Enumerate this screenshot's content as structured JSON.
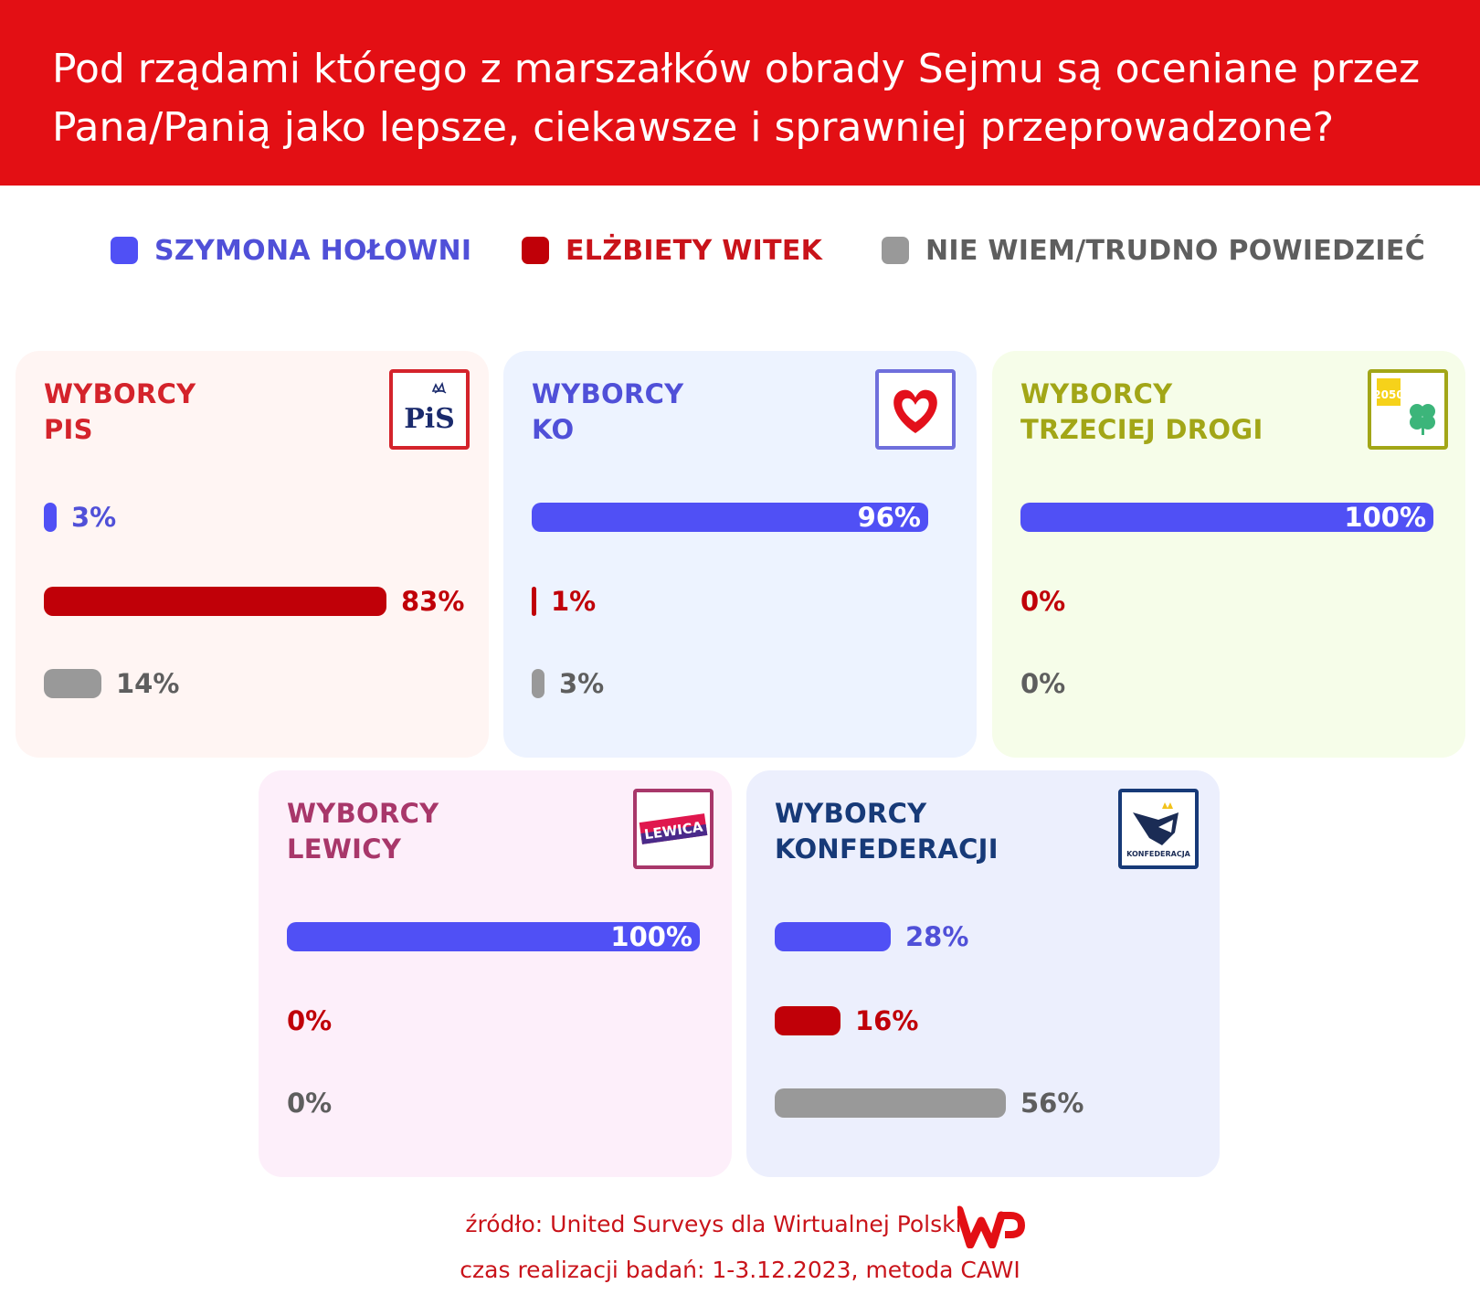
{
  "header": {
    "title": "Pod rządami którego z marszałków obrady Sejmu są oceniane przez Pana/Panią jako lepsze, ciekawsze i sprawniej przeprowadzone?"
  },
  "colors": {
    "holownia": "#5050f5",
    "witek": "#c00008",
    "dont_know": "#999999",
    "header": "#e30f14"
  },
  "legend": [
    {
      "label": "SZYMONA HOŁOWNI",
      "color": "#5050f5"
    },
    {
      "label": "ELŻBIETY WITEK",
      "color": "#c00008"
    },
    {
      "label": "NIE WIEM/TRUDNO POWIEDZIEĆ",
      "color": "#8a8a8a"
    }
  ],
  "chart_data": {
    "type": "bar",
    "series_names": [
      "SZYMONA HOŁOWNI",
      "ELŻBIETY WITEK",
      "NIE WIEM/TRUDNO POWIEDZIEĆ"
    ],
    "value_unit": "%",
    "xlim": [
      0,
      100
    ],
    "groups": [
      {
        "title_line1": "WYBORCY",
        "title_line2": "PIS",
        "title_color": "#d4232b",
        "bg": "#fff5f3",
        "logo": "pis-logo-icon",
        "logo_color": "#d4232b",
        "values": [
          3,
          83,
          14
        ],
        "labels": [
          "3%",
          "83%",
          "14%"
        ]
      },
      {
        "title_line1": "WYBORCY",
        "title_line2": "KO",
        "title_color": "#5050d8",
        "bg": "#edf3ff",
        "logo": "heart-icon",
        "logo_color": "#6f6fdc",
        "values": [
          96,
          1,
          3
        ],
        "labels": [
          "96%",
          "1%",
          "3%"
        ]
      },
      {
        "title_line1": "WYBORCY",
        "title_line2": "TRZECIEJ DROGI",
        "title_color": "#a2a617",
        "bg": "#f6fde9",
        "logo": "clover-icon",
        "logo_color": "#a2a617",
        "values": [
          100,
          0,
          0
        ],
        "labels": [
          "100%",
          "0%",
          "0%"
        ]
      },
      {
        "title_line1": "WYBORCY",
        "title_line2": "LEWICY",
        "title_color": "#a8376a",
        "bg": "#fdeffa",
        "logo": "lewica-logo-icon",
        "logo_color": "#a8376a",
        "values": [
          100,
          0,
          0
        ],
        "labels": [
          "100%",
          "0%",
          "0%"
        ]
      },
      {
        "title_line1": "WYBORCY",
        "title_line2": "KONFEDERACJI",
        "title_color": "#173a78",
        "bg": "#eceffd",
        "logo": "konfederacja-logo-icon",
        "logo_color": "#173a78",
        "values": [
          28,
          16,
          56
        ],
        "labels": [
          "28%",
          "16%",
          "56%"
        ]
      }
    ]
  },
  "logo_text": {
    "pis": "PiS",
    "lewica": "LEWICA",
    "konfederacja": "KONFEDERACJA",
    "trzecia": "2050"
  },
  "source": {
    "line1": "źródło: United Surveys dla Wirtualnej Polski",
    "line2": "czas realizacji badań: 1-3.12.2023, metoda CAWI"
  }
}
